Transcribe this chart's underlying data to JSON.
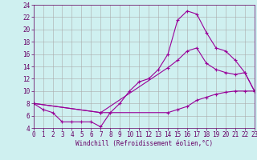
{
  "xlabel": "Windchill (Refroidissement éolien,°C)",
  "background_color": "#cff0f0",
  "grid_color": "#aaaaaa",
  "line_color": "#990099",
  "spine_color": "#660066",
  "xlim": [
    0,
    23
  ],
  "ylim": [
    4,
    24
  ],
  "yticks": [
    4,
    6,
    8,
    10,
    12,
    14,
    16,
    18,
    20,
    22,
    24
  ],
  "xticks": [
    0,
    1,
    2,
    3,
    4,
    5,
    6,
    7,
    8,
    9,
    10,
    11,
    12,
    13,
    14,
    15,
    16,
    17,
    18,
    19,
    20,
    21,
    22,
    23
  ],
  "line1_x": [
    0,
    1,
    2,
    3,
    4,
    5,
    6,
    7,
    8,
    9,
    10,
    11,
    12,
    13,
    14,
    15,
    16,
    17,
    18,
    19,
    20,
    21,
    22,
    23
  ],
  "line1_y": [
    8,
    7,
    6.5,
    5,
    5,
    5,
    5,
    4.2,
    6.5,
    8,
    10,
    11.5,
    12,
    13.5,
    16,
    21.5,
    23,
    22.5,
    19.5,
    17,
    16.5,
    15,
    13,
    10
  ],
  "line2_x": [
    0,
    7,
    14,
    15,
    16,
    17,
    18,
    19,
    20,
    21,
    22,
    23
  ],
  "line2_y": [
    8,
    6.5,
    13.8,
    15,
    16.5,
    17,
    14.5,
    13.5,
    13,
    12.7,
    13,
    10
  ],
  "line3_x": [
    0,
    7,
    14,
    15,
    16,
    17,
    18,
    19,
    20,
    21,
    22,
    23
  ],
  "line3_y": [
    8,
    6.5,
    6.5,
    7,
    7.5,
    8.5,
    9,
    9.5,
    9.8,
    10,
    10,
    10
  ],
  "tick_fontsize": 5.5,
  "xlabel_fontsize": 5.5,
  "linewidth": 0.8,
  "markersize": 2.5
}
